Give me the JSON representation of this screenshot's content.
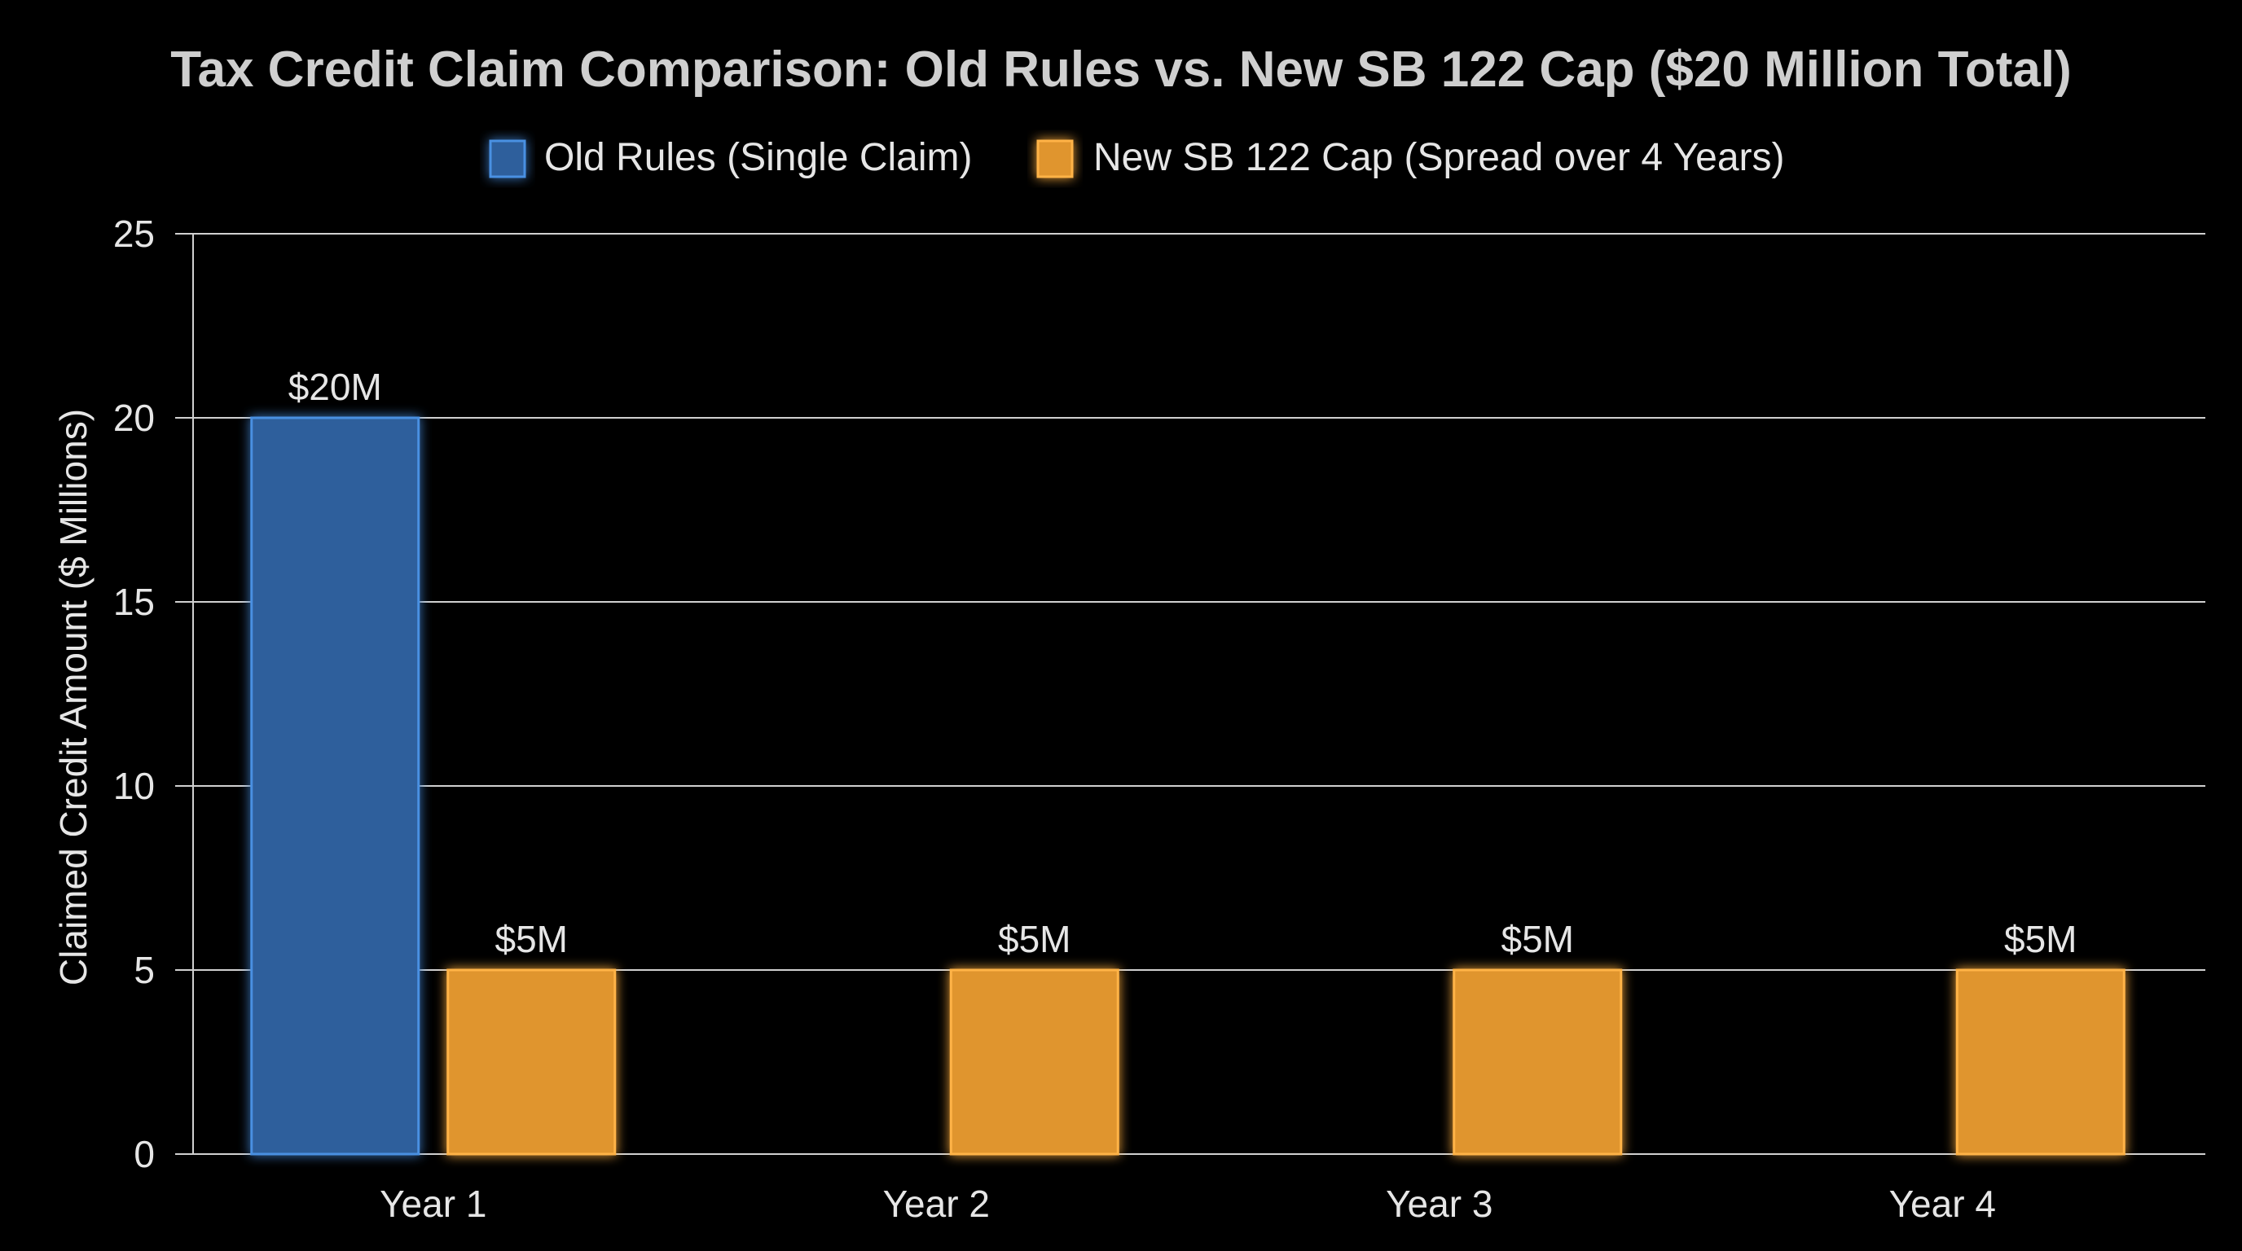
{
  "chart_data": {
    "type": "bar",
    "title": "Tax Credit Claim Comparison: Old Rules vs. New SB 122 Cap ($20 Million Total)",
    "xlabel": "",
    "ylabel": "Claimed Credit Amount ($ Millions)",
    "categories": [
      "Year 1",
      "Year 2",
      "Year 3",
      "Year 4"
    ],
    "ylim": [
      0,
      25
    ],
    "yticks": [
      0,
      5,
      10,
      15,
      20,
      25
    ],
    "grid": true,
    "legend_position": "top-center",
    "series": [
      {
        "name": "Old Rules (Single Claim)",
        "color": "#2e5f9c",
        "glow": "#4a90e2",
        "values": [
          20,
          null,
          null,
          null
        ],
        "labels": [
          "$20M",
          "",
          "",
          ""
        ]
      },
      {
        "name": "New SB 122 Cap (Spread over 4 Years)",
        "color": "#e0952e",
        "glow": "#ffb347",
        "values": [
          5,
          5,
          5,
          5
        ],
        "labels": [
          "$5M",
          "$5M",
          "$5M",
          "$5M"
        ]
      }
    ],
    "colors": {
      "background": "#000000",
      "text": "#e6e6e6",
      "title": "#cfcfcf",
      "grid": "#d0d0d0"
    }
  }
}
